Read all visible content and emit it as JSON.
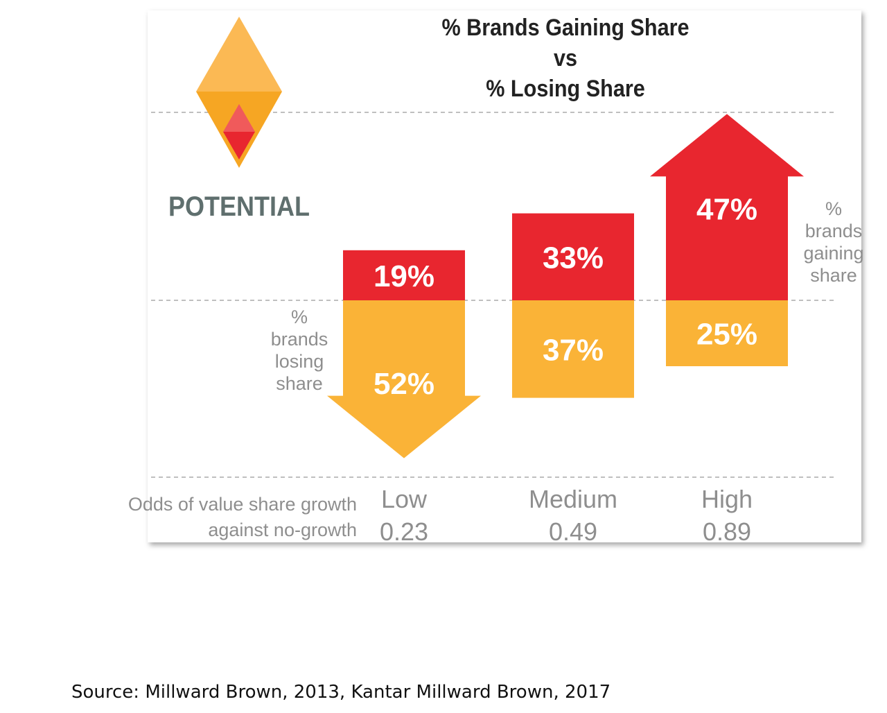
{
  "colors": {
    "gain": "#E8262F",
    "lose": "#FAB337",
    "emblem_light": "#FBB954",
    "emblem_mid": "#F6A623",
    "emblem_inner": "#E8262F",
    "emblem_inner_light": "#F05A5B",
    "potential_text": "#5F6F6E",
    "grid": "#999999",
    "muted_text": "#8E8E8E"
  },
  "chart_data": {
    "type": "bar",
    "title": "% Brands Gaining Share vs % Losing Share",
    "title_lines": [
      "% Brands Gaining Share",
      "vs",
      "% Losing Share"
    ],
    "brand_label": "POTENTIAL",
    "categories": [
      "Low",
      "Medium",
      "High"
    ],
    "odds": [
      "0.23",
      "0.49",
      "0.89"
    ],
    "odds_label_lines": [
      "Odds of value share growth",
      "against no-growth"
    ],
    "series": [
      {
        "name": "% brands gaining share",
        "label_lines": [
          "%",
          "brands",
          "gaining",
          "share"
        ],
        "values": [
          19,
          33,
          47
        ],
        "labels": [
          "19%",
          "33%",
          "47%"
        ]
      },
      {
        "name": "% brands losing share",
        "label_lines": [
          "%",
          "brands",
          "losing",
          "share"
        ],
        "values": [
          52,
          37,
          25
        ],
        "labels": [
          "52%",
          "37%",
          "25%"
        ]
      }
    ],
    "ylim": [
      0,
      60
    ],
    "grid": "dashed"
  },
  "source_text": "Source: Millward Brown, 2013, Kantar Millward Brown, 2017"
}
